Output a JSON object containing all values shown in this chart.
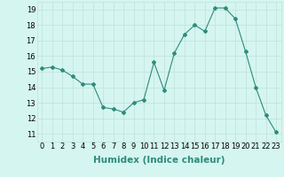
{
  "x": [
    0,
    1,
    2,
    3,
    4,
    5,
    6,
    7,
    8,
    9,
    10,
    11,
    12,
    13,
    14,
    15,
    16,
    17,
    18,
    19,
    20,
    21,
    22,
    23
  ],
  "y": [
    15.2,
    15.3,
    15.1,
    14.7,
    14.2,
    14.2,
    12.7,
    12.6,
    12.4,
    13.0,
    13.2,
    15.6,
    13.8,
    16.2,
    17.4,
    18.0,
    17.6,
    19.1,
    19.1,
    18.4,
    16.3,
    14.0,
    12.2,
    11.1
  ],
  "line_color": "#2e8b7a",
  "marker": "D",
  "marker_size": 2.0,
  "bg_color": "#d5f5f0",
  "grid_color": "#c0e0d8",
  "xlabel": "Humidex (Indice chaleur)",
  "xlabel_fontsize": 7.5,
  "tick_fontsize": 6,
  "xlim": [
    -0.5,
    23.5
  ],
  "ylim": [
    10.5,
    19.5
  ],
  "yticks": [
    11,
    12,
    13,
    14,
    15,
    16,
    17,
    18,
    19
  ],
  "xticks": [
    0,
    1,
    2,
    3,
    4,
    5,
    6,
    7,
    8,
    9,
    10,
    11,
    12,
    13,
    14,
    15,
    16,
    17,
    18,
    19,
    20,
    21,
    22,
    23
  ]
}
